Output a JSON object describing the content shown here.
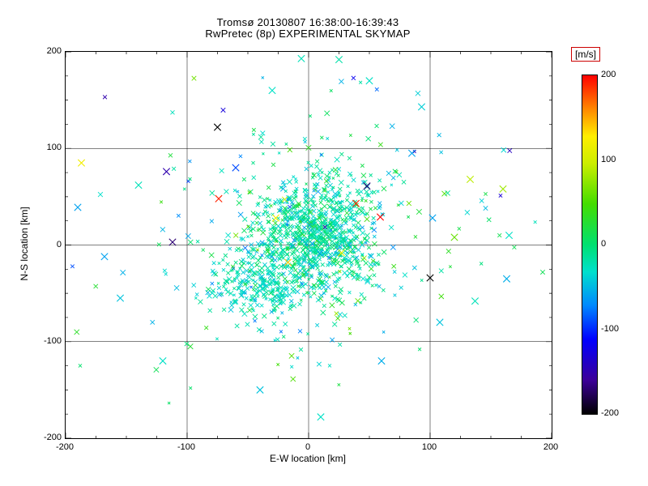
{
  "colors": {
    "background": "#ffffff",
    "axis": "#000000",
    "unit_box_border": "#cc0000"
  },
  "chart_data": {
    "type": "scatter",
    "title": "Tromsø 20130807 16:38:00-16:39:43",
    "subtitle": "RwPretec (8p) EXPERIMENTAL SKYMAP",
    "xlabel": "E-W location [km]",
    "ylabel": "N-S location [km]",
    "xlim": [
      -200,
      200
    ],
    "ylim": [
      -200,
      200
    ],
    "xticks": [
      -200,
      -100,
      0,
      100,
      200
    ],
    "yticks": [
      -200,
      -100,
      0,
      100,
      200
    ],
    "grid_lines": [
      -100,
      0,
      100
    ],
    "minor_tick_step": 25,
    "marker": "x",
    "grid": true,
    "legend_position": "none",
    "seed": 20130807,
    "colorbar": {
      "label": "[m/s]",
      "min": -200,
      "max": 200,
      "ticks": [
        200,
        100,
        0,
        -100,
        -200
      ],
      "stops": [
        {
          "t": 0.0,
          "c": "#000000"
        },
        {
          "t": 0.1,
          "c": "#3c0099"
        },
        {
          "t": 0.22,
          "c": "#0000ff"
        },
        {
          "t": 0.32,
          "c": "#0088ff"
        },
        {
          "t": 0.42,
          "c": "#00e0cc"
        },
        {
          "t": 0.5,
          "c": "#00e070"
        },
        {
          "t": 0.62,
          "c": "#44dd00"
        },
        {
          "t": 0.74,
          "c": "#ccee00"
        },
        {
          "t": 0.82,
          "c": "#ffee00"
        },
        {
          "t": 0.9,
          "c": "#ff8800"
        },
        {
          "t": 1.0,
          "c": "#ff0000"
        }
      ]
    },
    "clusters": [
      {
        "cx": 8,
        "cy": 15,
        "sx": 26,
        "sy": 32,
        "n": 750,
        "v_mean": -18,
        "v_sd": 22
      },
      {
        "cx": -40,
        "cy": -45,
        "sx": 20,
        "sy": 16,
        "n": 200,
        "v_mean": -25,
        "v_sd": 18
      },
      {
        "cx": -10,
        "cy": -12,
        "sx": 30,
        "sy": 26,
        "n": 200,
        "v_mean": -20,
        "v_sd": 20
      },
      {
        "cx": 0,
        "cy": 5,
        "sx": 75,
        "sy": 65,
        "n": 210,
        "v_mean": -15,
        "v_sd": 35
      },
      {
        "cx": 0,
        "cy": 0,
        "sx": 140,
        "sy": 110,
        "n": 45,
        "v_mean": -20,
        "v_sd": 70
      }
    ],
    "outlier_points": [
      [
        -187,
        85,
        120
      ],
      [
        -117,
        76,
        -150
      ],
      [
        -75,
        122,
        -200
      ],
      [
        -168,
        -12,
        -60
      ],
      [
        -190,
        39,
        -60
      ],
      [
        -74,
        48,
        190
      ],
      [
        39,
        43,
        190
      ],
      [
        59,
        29,
        200
      ],
      [
        100,
        -34,
        -200
      ],
      [
        133,
        68,
        90
      ],
      [
        160,
        58,
        80
      ],
      [
        50,
        170,
        -30
      ],
      [
        -6,
        193,
        -25
      ],
      [
        93,
        143,
        -40
      ],
      [
        165,
        10,
        -30
      ],
      [
        163,
        -35,
        -55
      ],
      [
        -140,
        62,
        -25
      ],
      [
        -155,
        -55,
        -45
      ],
      [
        -120,
        -120,
        -30
      ],
      [
        -40,
        -150,
        -45
      ],
      [
        10,
        -178,
        -30
      ],
      [
        60,
        -120,
        -55
      ],
      [
        108,
        -80,
        -45
      ],
      [
        85,
        95,
        -60
      ],
      [
        -30,
        160,
        -30
      ],
      [
        25,
        192,
        -20
      ],
      [
        -27,
        28,
        120
      ],
      [
        -17,
        -18,
        140
      ],
      [
        27,
        -8,
        110
      ],
      [
        -112,
        3,
        -170
      ],
      [
        48,
        61,
        -170
      ],
      [
        102,
        28,
        -60
      ],
      [
        137,
        -58,
        -25
      ],
      [
        -60,
        80,
        -90
      ],
      [
        120,
        8,
        60
      ]
    ]
  }
}
